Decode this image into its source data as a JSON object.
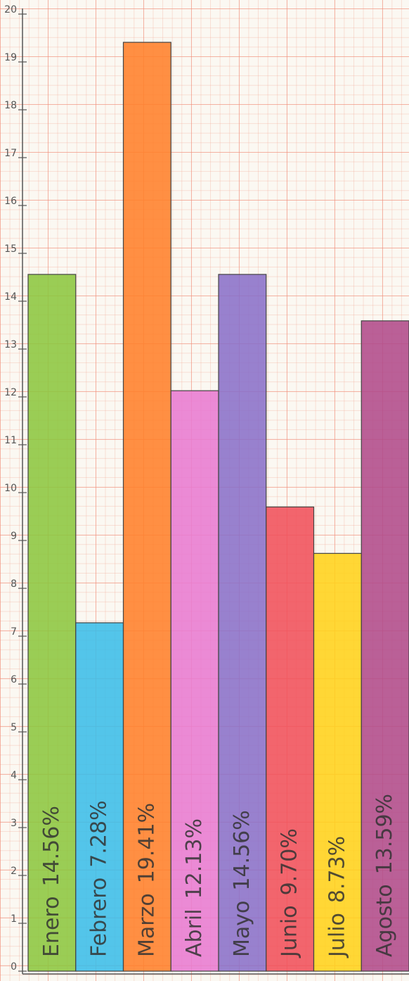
{
  "chart_data": {
    "type": "bar",
    "categories": [
      "Enero",
      "Febrero",
      "Marzo",
      "Abril",
      "Mayo",
      "Junio",
      "Julio",
      "Agosto"
    ],
    "values": [
      14.56,
      7.28,
      19.41,
      12.13,
      14.56,
      9.7,
      8.73,
      13.59
    ],
    "value_labels": [
      "14.56%",
      "7.28%",
      "19.41%",
      "12.13%",
      "14.56%",
      "9.70%",
      "8.73%",
      "13.59%"
    ],
    "colors": [
      "#8cc63f",
      "#3bbde8",
      "#ff7f2a",
      "#e87ad0",
      "#8a6fc8",
      "#f0505a",
      "#ffd21a",
      "#b04a8a"
    ],
    "ylim": [
      0,
      20
    ],
    "yticks": [
      0,
      1,
      2,
      3,
      4,
      5,
      6,
      7,
      8,
      9,
      10,
      11,
      12,
      13,
      14,
      15,
      16,
      17,
      18,
      19,
      20
    ]
  }
}
